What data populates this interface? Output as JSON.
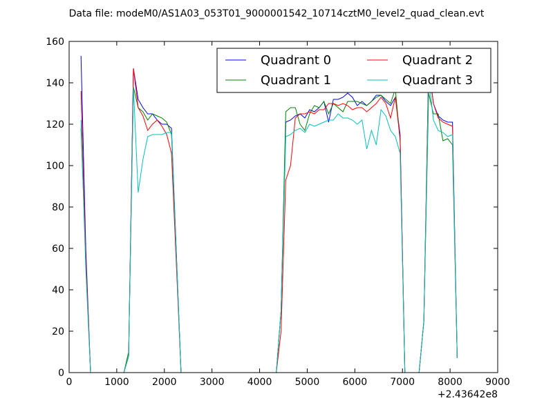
{
  "chart_data": {
    "type": "line",
    "title": "Data file: modeM0/AS1A03_053T01_9000001542_10714cztM0_level2_quad_clean.evt",
    "xlabel": "",
    "ylabel": "",
    "xlim": [
      0,
      9000
    ],
    "ylim": [
      0,
      160
    ],
    "x_ticks": [
      "0",
      "1000",
      "2000",
      "3000",
      "4000",
      "5000",
      "6000",
      "7000",
      "8000",
      "9000"
    ],
    "y_ticks": [
      "0",
      "20",
      "40",
      "60",
      "80",
      "100",
      "120",
      "140",
      "160"
    ],
    "x_offset_label": "+2.43642e8",
    "grid": false,
    "legend_location": "top-right",
    "legend_columns": 2,
    "series": [
      {
        "name": "Quadrant 0",
        "color": "#0000ff",
        "points": [
          [
            250,
            153
          ],
          [
            350,
            60
          ],
          [
            450,
            0
          ],
          [
            1150,
            0
          ],
          [
            1250,
            8
          ],
          [
            1350,
            147
          ],
          [
            1450,
            132
          ],
          [
            1550,
            128
          ],
          [
            1650,
            125
          ],
          [
            1750,
            125
          ],
          [
            1850,
            122
          ],
          [
            1950,
            120
          ],
          [
            2050,
            120
          ],
          [
            2150,
            118
          ],
          [
            2350,
            0
          ],
          [
            4350,
            0
          ],
          [
            4450,
            30
          ],
          [
            4550,
            121
          ],
          [
            4650,
            122
          ],
          [
            4750,
            124
          ],
          [
            4850,
            125
          ],
          [
            4950,
            123
          ],
          [
            5050,
            127
          ],
          [
            5150,
            126
          ],
          [
            5250,
            128
          ],
          [
            5350,
            131
          ],
          [
            5450,
            121
          ],
          [
            5550,
            132
          ],
          [
            5650,
            132
          ],
          [
            5750,
            133
          ],
          [
            5850,
            135
          ],
          [
            5950,
            133
          ],
          [
            6050,
            129
          ],
          [
            6150,
            131
          ],
          [
            6250,
            129
          ],
          [
            6350,
            131
          ],
          [
            6450,
            134
          ],
          [
            6550,
            134
          ],
          [
            6650,
            131
          ],
          [
            6750,
            129
          ],
          [
            6850,
            133
          ],
          [
            6950,
            115
          ],
          [
            7050,
            0
          ],
          [
            7350,
            0
          ],
          [
            7450,
            25
          ],
          [
            7550,
            148
          ],
          [
            7650,
            130
          ],
          [
            7750,
            124
          ],
          [
            7850,
            122
          ],
          [
            7950,
            121
          ],
          [
            8050,
            121
          ],
          [
            8150,
            7
          ]
        ]
      },
      {
        "name": "Quadrant 1",
        "color": "#008000",
        "points": [
          [
            250,
            118
          ],
          [
            350,
            55
          ],
          [
            450,
            0
          ],
          [
            1150,
            0
          ],
          [
            1250,
            10
          ],
          [
            1350,
            138
          ],
          [
            1450,
            128
          ],
          [
            1550,
            126
          ],
          [
            1650,
            122
          ],
          [
            1750,
            125
          ],
          [
            1850,
            124
          ],
          [
            1950,
            123
          ],
          [
            2050,
            121
          ],
          [
            2150,
            115
          ],
          [
            2350,
            0
          ],
          [
            4350,
            0
          ],
          [
            4450,
            30
          ],
          [
            4550,
            126
          ],
          [
            4650,
            128
          ],
          [
            4750,
            128
          ],
          [
            4850,
            120
          ],
          [
            4950,
            117
          ],
          [
            5050,
            125
          ],
          [
            5150,
            129
          ],
          [
            5250,
            128
          ],
          [
            5350,
            131
          ],
          [
            5450,
            125
          ],
          [
            5550,
            130
          ],
          [
            5650,
            128
          ],
          [
            5750,
            126
          ],
          [
            5850,
            131
          ],
          [
            5950,
            131
          ],
          [
            6050,
            131
          ],
          [
            6150,
            130
          ],
          [
            6250,
            129
          ],
          [
            6350,
            131
          ],
          [
            6450,
            133
          ],
          [
            6550,
            134
          ],
          [
            6650,
            132
          ],
          [
            6750,
            130
          ],
          [
            6850,
            137
          ],
          [
            6950,
            112
          ],
          [
            7050,
            0
          ],
          [
            7350,
            0
          ],
          [
            7450,
            25
          ],
          [
            7550,
            135
          ],
          [
            7650,
            125
          ],
          [
            7750,
            125
          ],
          [
            7850,
            112
          ],
          [
            7950,
            113
          ],
          [
            8050,
            110
          ],
          [
            8150,
            7
          ]
        ]
      },
      {
        "name": "Quadrant 2",
        "color": "#ff0000",
        "points": [
          [
            250,
            136
          ],
          [
            350,
            55
          ],
          [
            450,
            0
          ],
          [
            1150,
            0
          ],
          [
            1250,
            8
          ],
          [
            1350,
            147
          ],
          [
            1450,
            128
          ],
          [
            1550,
            124
          ],
          [
            1650,
            117
          ],
          [
            1750,
            120
          ],
          [
            1850,
            122
          ],
          [
            1950,
            119
          ],
          [
            2050,
            115
          ],
          [
            2150,
            106
          ],
          [
            2350,
            0
          ],
          [
            4350,
            0
          ],
          [
            4450,
            20
          ],
          [
            4550,
            93
          ],
          [
            4650,
            100
          ],
          [
            4750,
            123
          ],
          [
            4850,
            125
          ],
          [
            4950,
            125
          ],
          [
            5050,
            126
          ],
          [
            5150,
            125
          ],
          [
            5250,
            127
          ],
          [
            5350,
            127
          ],
          [
            5450,
            130
          ],
          [
            5550,
            130
          ],
          [
            5650,
            129
          ],
          [
            5750,
            130
          ],
          [
            5850,
            129
          ],
          [
            5950,
            127
          ],
          [
            6050,
            128
          ],
          [
            6150,
            128
          ],
          [
            6250,
            126
          ],
          [
            6350,
            128
          ],
          [
            6450,
            130
          ],
          [
            6550,
            133
          ],
          [
            6650,
            130
          ],
          [
            6750,
            123
          ],
          [
            6850,
            133
          ],
          [
            6950,
            113
          ],
          [
            7050,
            0
          ],
          [
            7350,
            0
          ],
          [
            7450,
            25
          ],
          [
            7550,
            149
          ],
          [
            7650,
            130
          ],
          [
            7750,
            123
          ],
          [
            7850,
            121
          ],
          [
            7950,
            120
          ],
          [
            8050,
            119
          ],
          [
            8150,
            7
          ]
        ]
      },
      {
        "name": "Quadrant 3",
        "color": "#00bfbf",
        "points": [
          [
            250,
            122
          ],
          [
            350,
            50
          ],
          [
            450,
            0
          ],
          [
            1150,
            0
          ],
          [
            1250,
            8
          ],
          [
            1350,
            138
          ],
          [
            1450,
            87
          ],
          [
            1550,
            103
          ],
          [
            1650,
            114
          ],
          [
            1750,
            115
          ],
          [
            1850,
            115
          ],
          [
            1950,
            115
          ],
          [
            2050,
            116
          ],
          [
            2150,
            116
          ],
          [
            2350,
            0
          ],
          [
            4350,
            0
          ],
          [
            4450,
            30
          ],
          [
            4550,
            114
          ],
          [
            4650,
            115
          ],
          [
            4750,
            117
          ],
          [
            4850,
            118
          ],
          [
            4950,
            116
          ],
          [
            5050,
            120
          ],
          [
            5150,
            119
          ],
          [
            5250,
            120
          ],
          [
            5350,
            121
          ],
          [
            5450,
            122
          ],
          [
            5550,
            122
          ],
          [
            5650,
            125
          ],
          [
            5750,
            123
          ],
          [
            5850,
            123
          ],
          [
            5950,
            122
          ],
          [
            6050,
            120
          ],
          [
            6150,
            122
          ],
          [
            6250,
            108
          ],
          [
            6350,
            117
          ],
          [
            6450,
            110
          ],
          [
            6550,
            127
          ],
          [
            6650,
            124
          ],
          [
            6750,
            117
          ],
          [
            6850,
            114
          ],
          [
            6950,
            106
          ],
          [
            7050,
            0
          ],
          [
            7350,
            0
          ],
          [
            7450,
            25
          ],
          [
            7550,
            143
          ],
          [
            7650,
            122
          ],
          [
            7750,
            117
          ],
          [
            7850,
            116
          ],
          [
            7950,
            114
          ],
          [
            8050,
            115
          ],
          [
            8150,
            7
          ]
        ]
      }
    ]
  }
}
